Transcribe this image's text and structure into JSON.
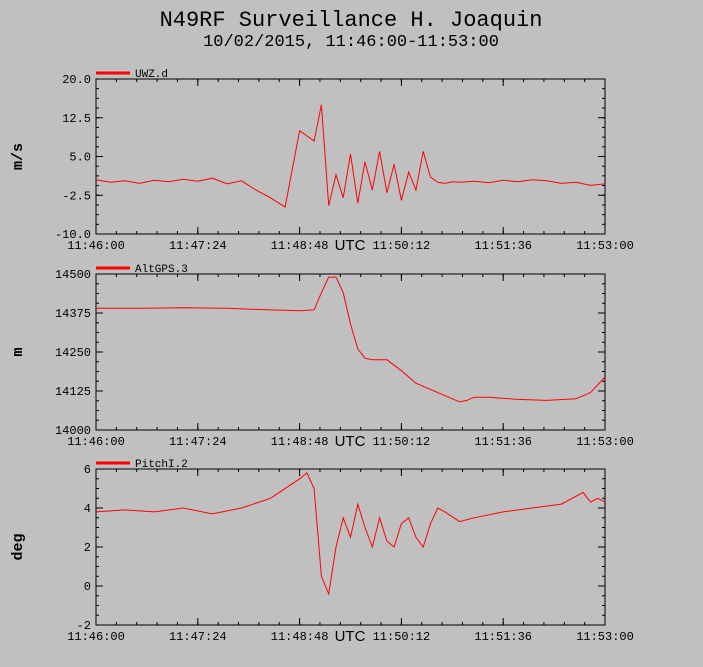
{
  "title": "N49RF Surveillance H. Joaquin",
  "subtitle": "10/02/2015, 11:46:00-11:53:00",
  "xaxis_label": "UTC",
  "colors": {
    "background": "#c0c0c0",
    "series": "#ff0000",
    "axis": "#000000"
  },
  "chart_data": [
    {
      "type": "line",
      "ylabel": "m/s",
      "ylim": [
        -10.0,
        20.0
      ],
      "yticks": [
        "20.0",
        "12.5",
        "5.0",
        "-2.5",
        "-10.0"
      ],
      "xlim": [
        "11:46:00",
        "11:53:00"
      ],
      "xticks": [
        "11:46:00",
        "11:47:24",
        "11:48:48",
        "11:50:12",
        "11:51:36",
        "11:53:00"
      ],
      "grid": false,
      "legend": "top-left",
      "series": [
        {
          "name": "UWZ.d",
          "x": [
            "11:46:00",
            "11:46:12",
            "11:46:24",
            "11:46:36",
            "11:46:48",
            "11:47:00",
            "11:47:12",
            "11:47:24",
            "11:47:36",
            "11:47:48",
            "11:48:00",
            "11:48:12",
            "11:48:24",
            "11:48:36",
            "11:48:48",
            "11:49:00",
            "11:49:06",
            "11:49:12",
            "11:49:18",
            "11:49:24",
            "11:49:30",
            "11:49:36",
            "11:49:42",
            "11:49:48",
            "11:49:54",
            "11:50:00",
            "11:50:06",
            "11:50:12",
            "11:50:18",
            "11:50:24",
            "11:50:30",
            "11:50:36",
            "11:50:42",
            "11:50:48",
            "11:50:54",
            "11:51:00",
            "11:51:12",
            "11:51:24",
            "11:51:36",
            "11:51:48",
            "11:52:00",
            "11:52:12",
            "11:52:24",
            "11:52:36",
            "11:52:48",
            "11:53:00"
          ],
          "y": [
            0.5,
            0.0,
            0.3,
            -0.2,
            0.4,
            0.1,
            0.6,
            0.2,
            0.8,
            -0.3,
            0.3,
            -1.5,
            -3.0,
            -4.8,
            10.0,
            8.0,
            15.0,
            -4.5,
            1.5,
            -3.0,
            5.5,
            -4.0,
            4.0,
            -1.5,
            6.0,
            -2.0,
            3.5,
            -3.5,
            2.0,
            -1.5,
            6.0,
            1.0,
            0.0,
            -0.2,
            0.1,
            0.0,
            0.2,
            -0.1,
            0.4,
            0.1,
            0.5,
            0.3,
            -0.2,
            0.0,
            -0.6,
            -0.3
          ]
        }
      ]
    },
    {
      "type": "line",
      "ylabel": "m",
      "ylim": [
        14000,
        14500
      ],
      "yticks": [
        "14500",
        "14375",
        "14250",
        "14125",
        "14000"
      ],
      "xlim": [
        "11:46:00",
        "11:53:00"
      ],
      "xticks": [
        "11:46:00",
        "11:47:24",
        "11:48:48",
        "11:50:12",
        "11:51:36",
        "11:53:00"
      ],
      "grid": false,
      "legend": "top-left",
      "series": [
        {
          "name": "AltGPS.3",
          "x": [
            "11:46:00",
            "11:46:36",
            "11:47:12",
            "11:47:48",
            "11:48:24",
            "11:48:48",
            "11:49:00",
            "11:49:06",
            "11:49:12",
            "11:49:18",
            "11:49:24",
            "11:49:30",
            "11:49:36",
            "11:49:42",
            "11:49:48",
            "11:50:00",
            "11:50:12",
            "11:50:24",
            "11:50:36",
            "11:50:48",
            "11:51:00",
            "11:51:06",
            "11:51:12",
            "11:51:24",
            "11:51:48",
            "11:52:12",
            "11:52:36",
            "11:52:48",
            "11:53:00"
          ],
          "y": [
            14390,
            14390,
            14392,
            14390,
            14385,
            14382,
            14385,
            14440,
            14490,
            14490,
            14440,
            14340,
            14260,
            14230,
            14225,
            14225,
            14190,
            14150,
            14130,
            14110,
            14090,
            14095,
            14105,
            14105,
            14098,
            14095,
            14100,
            14120,
            14170
          ]
        }
      ]
    },
    {
      "type": "line",
      "ylabel": "deg",
      "ylim": [
        -2,
        6
      ],
      "yticks": [
        "6",
        "4",
        "2",
        "0",
        "-2"
      ],
      "xlim": [
        "11:46:00",
        "11:53:00"
      ],
      "xticks": [
        "11:46:00",
        "11:47:24",
        "11:48:48",
        "11:50:12",
        "11:51:36",
        "11:53:00"
      ],
      "grid": false,
      "legend": "top-left",
      "series": [
        {
          "name": "PitchI.2",
          "x": [
            "11:46:00",
            "11:46:24",
            "11:46:48",
            "11:47:12",
            "11:47:36",
            "11:48:00",
            "11:48:24",
            "11:48:48",
            "11:48:54",
            "11:49:00",
            "11:49:06",
            "11:49:12",
            "11:49:18",
            "11:49:24",
            "11:49:30",
            "11:49:36",
            "11:49:42",
            "11:49:48",
            "11:49:54",
            "11:50:00",
            "11:50:06",
            "11:50:12",
            "11:50:18",
            "11:50:24",
            "11:50:30",
            "11:50:36",
            "11:50:42",
            "11:50:48",
            "11:51:00",
            "11:51:12",
            "11:51:36",
            "11:52:00",
            "11:52:24",
            "11:52:42",
            "11:52:48",
            "11:52:54",
            "11:53:00"
          ],
          "y": [
            3.8,
            3.9,
            3.8,
            4.0,
            3.7,
            4.0,
            4.5,
            5.5,
            5.8,
            5.0,
            0.5,
            -0.4,
            2.0,
            3.5,
            2.5,
            4.2,
            3.0,
            2.0,
            3.5,
            2.3,
            2.0,
            3.2,
            3.5,
            2.5,
            2.0,
            3.2,
            4.0,
            3.8,
            3.3,
            3.5,
            3.8,
            4.0,
            4.2,
            4.8,
            4.3,
            4.5,
            4.3
          ]
        }
      ]
    }
  ]
}
